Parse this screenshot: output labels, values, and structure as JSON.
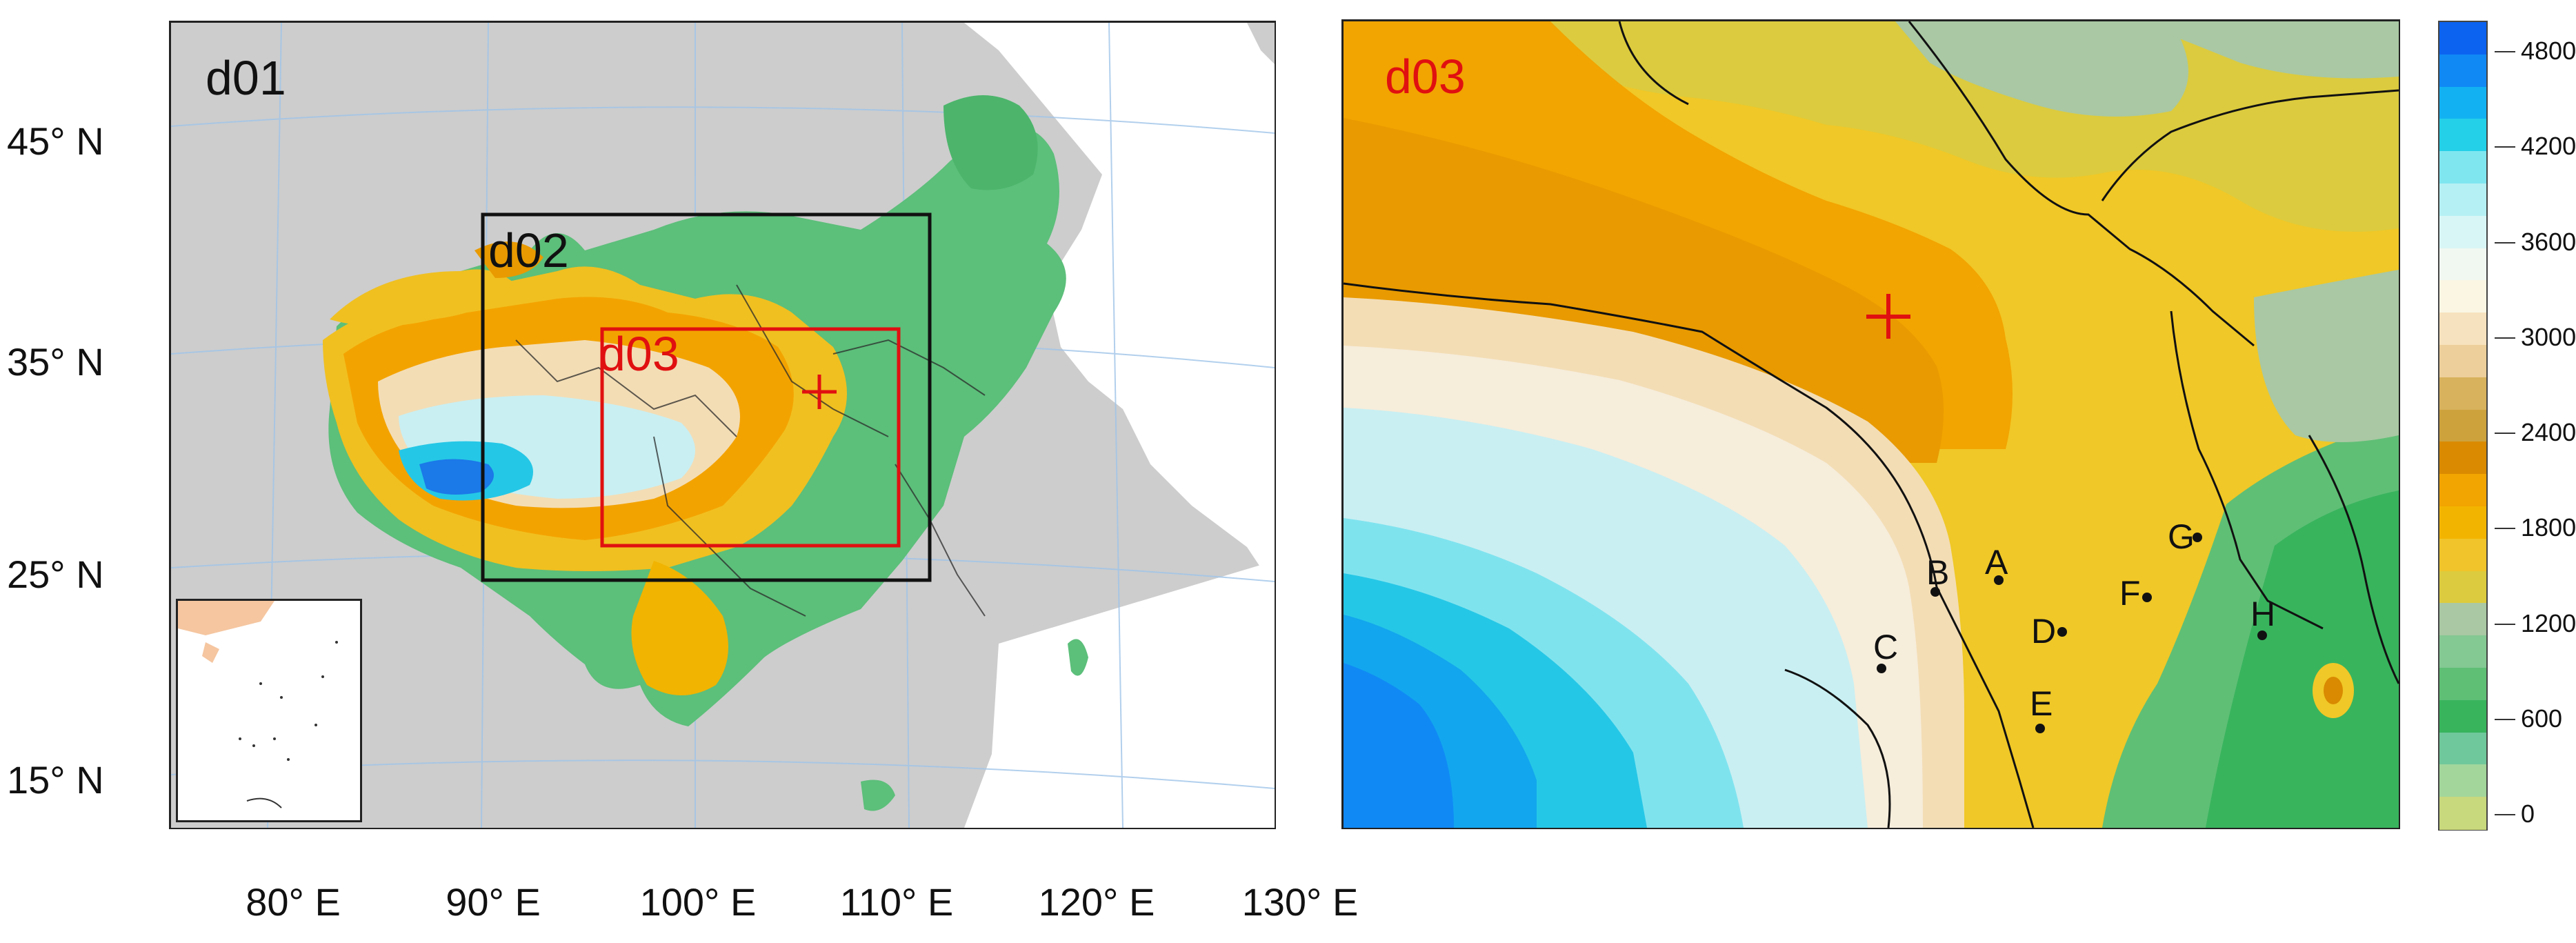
{
  "latitude_labels": [
    "45° N",
    "35° N",
    "25° N",
    "15° N"
  ],
  "longitude_labels": [
    "80° E",
    "90° E",
    "100° E",
    "110° E",
    "120° E",
    "130° E"
  ],
  "domains": {
    "outer": "d01",
    "middle": "d02",
    "inner": "d03"
  },
  "right_panel_title": "d03",
  "colorbar": {
    "labels": [
      "4800",
      "4200",
      "3600",
      "3000",
      "2400",
      "1800",
      "1200",
      "600",
      "0"
    ],
    "colors": [
      "#0b63f0",
      "#1089f5",
      "#12b2f2",
      "#23d0e8",
      "#7fe6f0",
      "#b5f0f4",
      "#d9f6f6",
      "#f1f8f2",
      "#fbf6e4",
      "#f6e2be",
      "#eccf9a",
      "#d8b25d",
      "#cda23d",
      "#d98a00",
      "#f2a400",
      "#f3b400",
      "#f0c42a",
      "#dccb3e",
      "#a9c8a3",
      "#84c893",
      "#5fbf75",
      "#38b45d",
      "#6fc89b",
      "#a2d69b",
      "#c8d87d"
    ]
  },
  "sites": [
    {
      "label": "A"
    },
    {
      "label": "B"
    },
    {
      "label": "C"
    },
    {
      "label": "D"
    },
    {
      "label": "E"
    },
    {
      "label": "F"
    },
    {
      "label": "G"
    },
    {
      "label": "H"
    }
  ],
  "marker": "+"
}
